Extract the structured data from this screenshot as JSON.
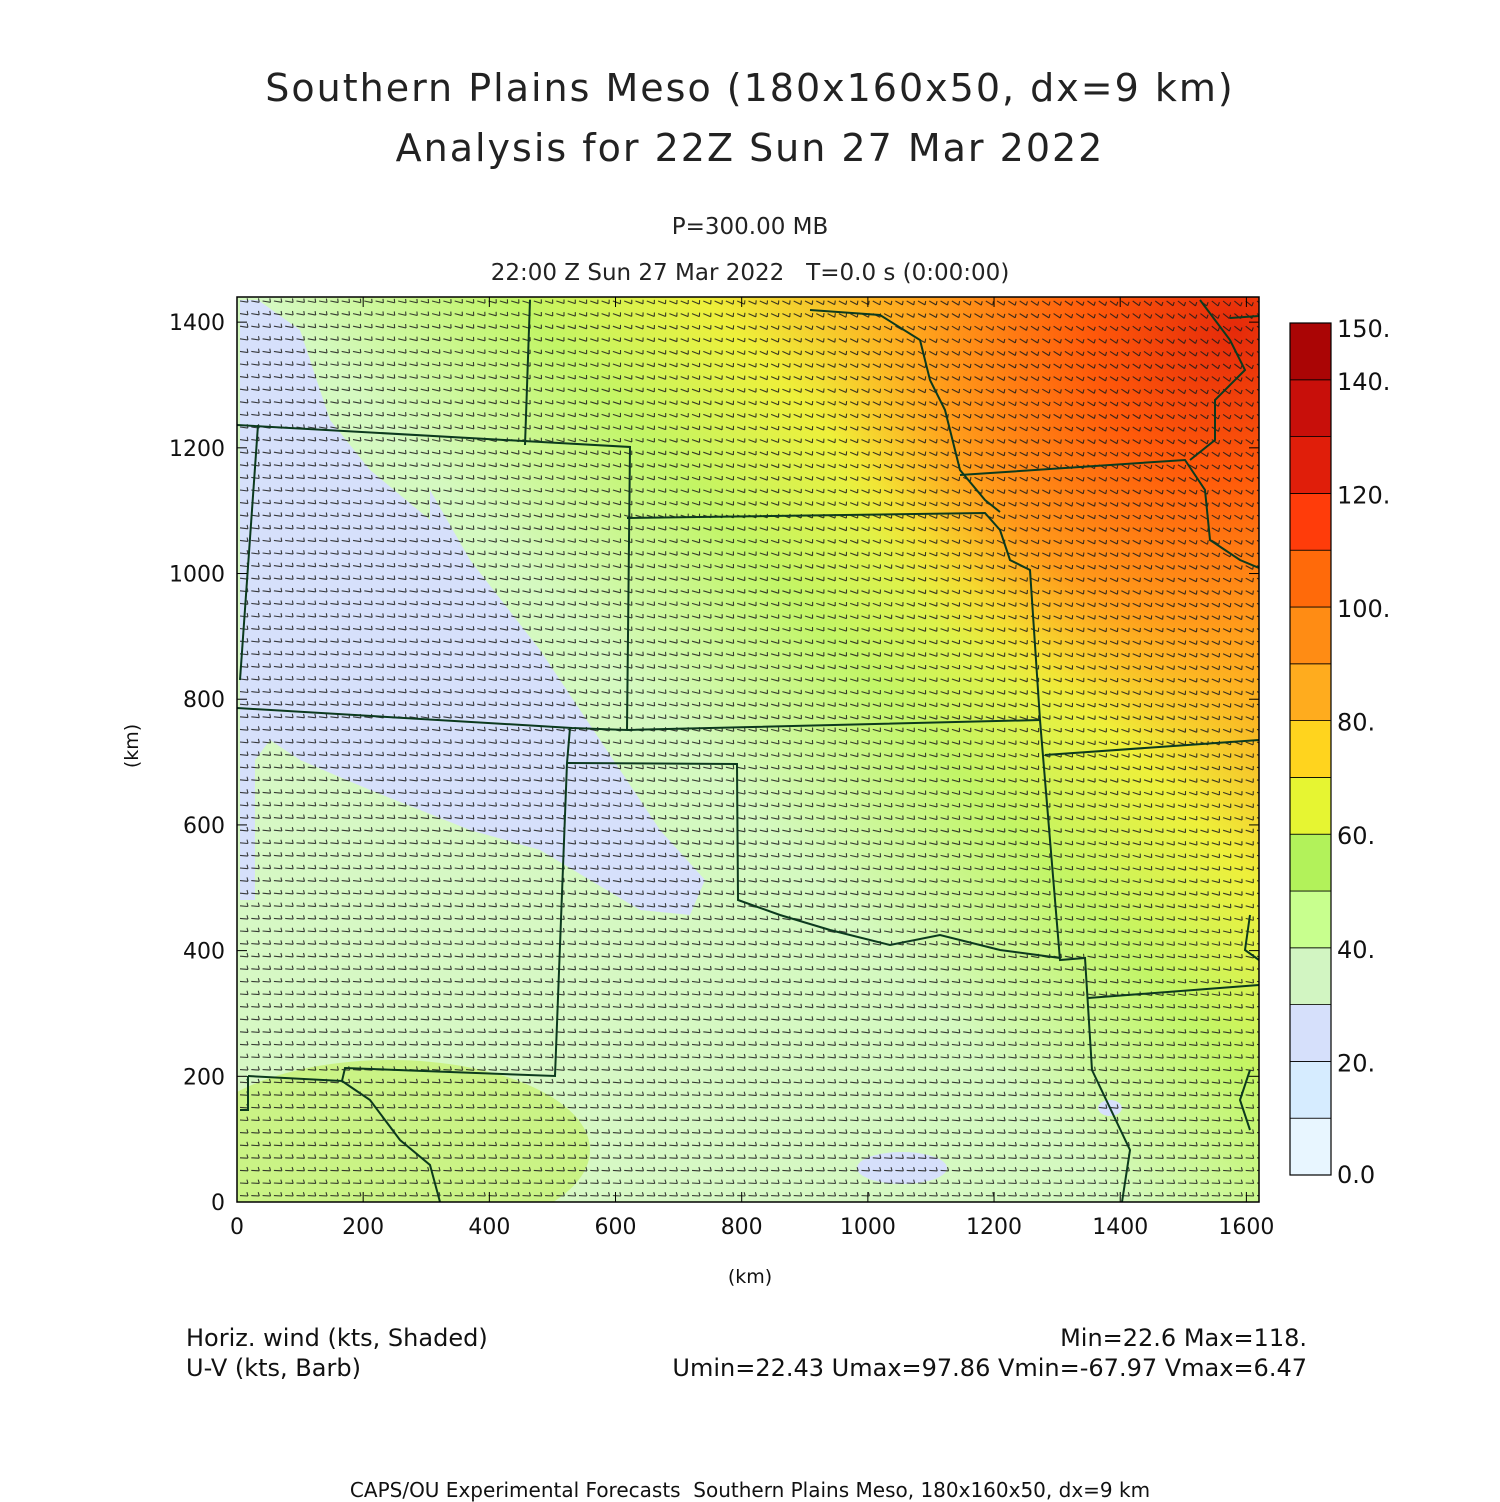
{
  "title": {
    "line1": "Southern Plains Meso (180x160x50, dx=9 km)",
    "line2": "Analysis for 22Z Sun 27 Mar 2022"
  },
  "level": "P=300.00 MB",
  "valid_time": "22:00 Z Sun 27 Mar 2022   T=0.0 s (0:00:00)",
  "axes": {
    "x_label": "(km)",
    "y_label": "(km)",
    "x_ticks": [
      0,
      200,
      400,
      600,
      800,
      1000,
      1200,
      1400,
      1600
    ],
    "y_ticks": [
      0,
      200,
      400,
      600,
      800,
      1000,
      1200,
      1400
    ],
    "x_range": [
      0,
      1620
    ],
    "y_range": [
      0,
      1440
    ]
  },
  "colorbar": {
    "labels": [
      "150.",
      "140.",
      "120.",
      "100.",
      "80.",
      "60.",
      "40.",
      "20.",
      "0.0"
    ],
    "colors": [
      "#e8f6ff",
      "#d6ecff",
      "#d6e0fb",
      "#d2f5c2",
      "#c8ff8e",
      "#b2f25a",
      "#e6f532",
      "#ffd41e",
      "#ffac1e",
      "#ff8c14",
      "#ff6a0a",
      "#ff3c0a",
      "#e01e0a",
      "#c80f0a",
      "#aa0505"
    ],
    "bounds": [
      0,
      10,
      20,
      30,
      40,
      50,
      60,
      70,
      80,
      90,
      100,
      110,
      120,
      130,
      140,
      150
    ]
  },
  "legend": {
    "shaded": "Horiz. wind (kts, Shaded)",
    "barb": "U-V (kts, Barb)",
    "minmax": "Min=22.6 Max=118.",
    "uv_minmax": "Umin=22.43 Umax=97.86 Vmin=-67.97 Vmax=6.47"
  },
  "footer": "CAPS/OU Experimental Forecasts  Southern Plains Meso, 180x160x50, dx=9 km",
  "chart_data": {
    "type": "heatmap",
    "field": "horizontal wind speed (kts) at 300 mb with wind barbs",
    "min": 22.6,
    "max": 118,
    "u_min": 22.43,
    "u_max": 97.86,
    "v_min": -67.97,
    "v_max": 6.47
  }
}
